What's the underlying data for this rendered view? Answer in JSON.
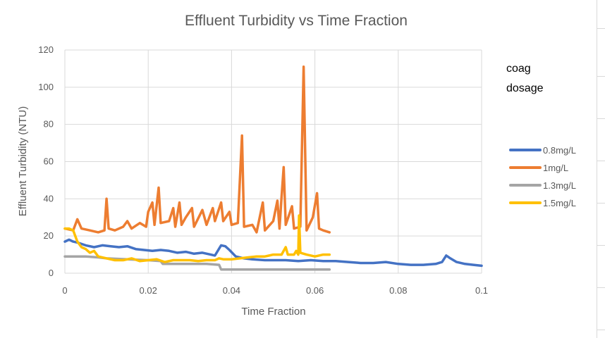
{
  "chart_data": {
    "type": "line",
    "title": "Effluent Turbidity vs Time Fraction",
    "xlabel": "Time Fraction",
    "ylabel": "Effluent Turbidity (NTU)",
    "xlim": [
      0,
      0.1
    ],
    "ylim": [
      0,
      120
    ],
    "x_ticks": [
      "0",
      "0.02",
      "0.04",
      "0.06",
      "0.08",
      "0.1"
    ],
    "y_ticks": [
      "0",
      "20",
      "40",
      "60",
      "80",
      "100",
      "120"
    ],
    "grid": true,
    "legend_title_lines": [
      "coag",
      "dosage"
    ],
    "legend_position": "right",
    "series": [
      {
        "name": "0.8mg/L",
        "color": "#4472C4",
        "points": [
          [
            0,
            17
          ],
          [
            0.001,
            18
          ],
          [
            0.002,
            17
          ],
          [
            0.003,
            16.5
          ],
          [
            0.005,
            15
          ],
          [
            0.007,
            14
          ],
          [
            0.009,
            15
          ],
          [
            0.011,
            14.5
          ],
          [
            0.013,
            14
          ],
          [
            0.015,
            14.5
          ],
          [
            0.017,
            13
          ],
          [
            0.019,
            12.5
          ],
          [
            0.021,
            12
          ],
          [
            0.023,
            12.5
          ],
          [
            0.025,
            12
          ],
          [
            0.027,
            11
          ],
          [
            0.029,
            11.5
          ],
          [
            0.031,
            10.5
          ],
          [
            0.033,
            11
          ],
          [
            0.035,
            10
          ],
          [
            0.036,
            9.5
          ],
          [
            0.0375,
            15
          ],
          [
            0.0385,
            14.5
          ],
          [
            0.0395,
            12.5
          ],
          [
            0.041,
            9
          ],
          [
            0.043,
            8
          ],
          [
            0.045,
            7.5
          ],
          [
            0.048,
            7
          ],
          [
            0.05,
            7
          ],
          [
            0.053,
            7
          ],
          [
            0.056,
            6.5
          ],
          [
            0.059,
            7
          ],
          [
            0.062,
            6.5
          ],
          [
            0.065,
            6.5
          ],
          [
            0.068,
            6
          ],
          [
            0.071,
            5.5
          ],
          [
            0.074,
            5.5
          ],
          [
            0.077,
            6
          ],
          [
            0.08,
            5
          ],
          [
            0.083,
            4.5
          ],
          [
            0.086,
            4.5
          ],
          [
            0.089,
            5
          ],
          [
            0.0905,
            6
          ],
          [
            0.0915,
            9.5
          ],
          [
            0.0925,
            8
          ],
          [
            0.094,
            6
          ],
          [
            0.096,
            5
          ],
          [
            0.098,
            4.5
          ],
          [
            0.1,
            4
          ]
        ]
      },
      {
        "name": "1mg/L",
        "color": "#ED7D31",
        "points": [
          [
            0,
            24
          ],
          [
            0.002,
            23
          ],
          [
            0.003,
            29
          ],
          [
            0.004,
            24
          ],
          [
            0.006,
            23
          ],
          [
            0.008,
            22
          ],
          [
            0.0095,
            23
          ],
          [
            0.01,
            40
          ],
          [
            0.0105,
            24
          ],
          [
            0.012,
            23
          ],
          [
            0.014,
            25
          ],
          [
            0.015,
            28
          ],
          [
            0.016,
            24
          ],
          [
            0.018,
            27
          ],
          [
            0.0195,
            25
          ],
          [
            0.02,
            33
          ],
          [
            0.021,
            38
          ],
          [
            0.0215,
            26
          ],
          [
            0.0225,
            46
          ],
          [
            0.023,
            27
          ],
          [
            0.025,
            28
          ],
          [
            0.026,
            35
          ],
          [
            0.0265,
            25
          ],
          [
            0.0275,
            38
          ],
          [
            0.028,
            26
          ],
          [
            0.029,
            30
          ],
          [
            0.0305,
            35
          ],
          [
            0.031,
            25
          ],
          [
            0.033,
            34
          ],
          [
            0.034,
            26
          ],
          [
            0.0355,
            35
          ],
          [
            0.036,
            28
          ],
          [
            0.0375,
            38
          ],
          [
            0.038,
            28
          ],
          [
            0.0395,
            33
          ],
          [
            0.04,
            26
          ],
          [
            0.0415,
            27
          ],
          [
            0.0425,
            74
          ],
          [
            0.043,
            25
          ],
          [
            0.045,
            26
          ],
          [
            0.046,
            22
          ],
          [
            0.0475,
            38
          ],
          [
            0.048,
            23
          ],
          [
            0.05,
            28
          ],
          [
            0.051,
            39
          ],
          [
            0.0515,
            24
          ],
          [
            0.052,
            41
          ],
          [
            0.0525,
            57
          ],
          [
            0.053,
            26
          ],
          [
            0.0545,
            36
          ],
          [
            0.055,
            24
          ],
          [
            0.0565,
            25
          ],
          [
            0.0573,
            111
          ],
          [
            0.058,
            23
          ],
          [
            0.0595,
            30
          ],
          [
            0.0605,
            43
          ],
          [
            0.061,
            24
          ],
          [
            0.062,
            23
          ],
          [
            0.0635,
            22
          ]
        ]
      },
      {
        "name": "1.3mg/L",
        "color": "#A5A5A5",
        "points": [
          [
            0,
            9
          ],
          [
            0.005,
            9
          ],
          [
            0.008,
            8.5
          ],
          [
            0.01,
            8
          ],
          [
            0.015,
            7.5
          ],
          [
            0.02,
            7
          ],
          [
            0.023,
            6.5
          ],
          [
            0.0235,
            5
          ],
          [
            0.026,
            5
          ],
          [
            0.03,
            5
          ],
          [
            0.034,
            5
          ],
          [
            0.037,
            4.5
          ],
          [
            0.0375,
            2
          ],
          [
            0.04,
            2
          ],
          [
            0.045,
            2
          ],
          [
            0.05,
            2
          ],
          [
            0.055,
            2
          ],
          [
            0.06,
            2
          ],
          [
            0.0635,
            2
          ]
        ]
      },
      {
        "name": "1.5mg/L",
        "color": "#FFC000",
        "points": [
          [
            0,
            24
          ],
          [
            0.001,
            24
          ],
          [
            0.002,
            23
          ],
          [
            0.003,
            17
          ],
          [
            0.004,
            14
          ],
          [
            0.005,
            13
          ],
          [
            0.006,
            11
          ],
          [
            0.007,
            12
          ],
          [
            0.008,
            9
          ],
          [
            0.01,
            8
          ],
          [
            0.012,
            7
          ],
          [
            0.014,
            7
          ],
          [
            0.016,
            8
          ],
          [
            0.018,
            6.5
          ],
          [
            0.02,
            7
          ],
          [
            0.022,
            7.5
          ],
          [
            0.024,
            6
          ],
          [
            0.026,
            7
          ],
          [
            0.028,
            7
          ],
          [
            0.03,
            7
          ],
          [
            0.032,
            6.5
          ],
          [
            0.034,
            7
          ],
          [
            0.036,
            7
          ],
          [
            0.037,
            8
          ],
          [
            0.038,
            7.5
          ],
          [
            0.04,
            7.5
          ],
          [
            0.042,
            8
          ],
          [
            0.044,
            8.5
          ],
          [
            0.046,
            9
          ],
          [
            0.048,
            9
          ],
          [
            0.05,
            10
          ],
          [
            0.052,
            10
          ],
          [
            0.053,
            14
          ],
          [
            0.0535,
            10
          ],
          [
            0.055,
            10
          ],
          [
            0.0555,
            12
          ],
          [
            0.056,
            10
          ],
          [
            0.0562,
            31
          ],
          [
            0.0565,
            11
          ],
          [
            0.058,
            10
          ],
          [
            0.06,
            9
          ],
          [
            0.062,
            10
          ],
          [
            0.0635,
            10
          ]
        ]
      }
    ]
  }
}
